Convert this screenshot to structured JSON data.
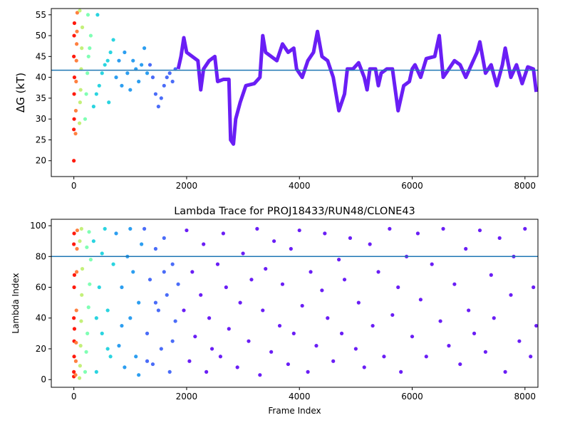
{
  "chart_data": [
    {
      "type": "scatter",
      "ylabel": "ΔG (kT)",
      "xlim": [
        -400,
        8230
      ],
      "ylim": [
        16.2,
        56.5
      ],
      "xticks": [
        0,
        2000,
        4000,
        6000,
        8000
      ],
      "yticks": [
        20,
        25,
        30,
        35,
        40,
        45,
        50,
        55
      ],
      "hline": 41.7,
      "hline_color": "#1f77b4",
      "series": [
        {
          "color": "#ff1a0d",
          "x": [
            0,
            0,
            5,
            5,
            10,
            0,
            5,
            10
          ],
          "values": [
            20,
            27.5,
            30,
            36,
            40,
            45,
            50,
            53
          ]
        },
        {
          "color": "#ff8040",
          "x": [
            30,
            35,
            40,
            45,
            50,
            55,
            60
          ],
          "values": [
            26.5,
            32,
            39,
            44,
            48,
            51,
            55.5
          ]
        },
        {
          "color": "#c4f07a",
          "x": [
            100,
            110,
            120,
            130,
            140,
            150,
            105
          ],
          "values": [
            29,
            34,
            37,
            42,
            47,
            52,
            56
          ]
        },
        {
          "color": "#80ffb4",
          "x": [
            200,
            220,
            240,
            260,
            280,
            300,
            250
          ],
          "values": [
            30,
            36,
            41,
            45,
            47,
            50,
            55
          ]
        },
        {
          "color": "#2ad4e0",
          "x": [
            350,
            400,
            450,
            500,
            550,
            600,
            650,
            700,
            420,
            620
          ],
          "values": [
            33,
            36,
            38,
            41,
            43,
            44,
            46,
            49,
            55,
            34
          ]
        },
        {
          "color": "#2c9ef0",
          "x": [
            750,
            800,
            850,
            900,
            950,
            1000,
            1050,
            1100,
            1150,
            1200,
            1250,
            1300
          ],
          "values": [
            40,
            44,
            38,
            46,
            41,
            37,
            44,
            42,
            39,
            43,
            47,
            41
          ]
        },
        {
          "color": "#4a6cf8",
          "x": [
            1350,
            1400,
            1450,
            1500,
            1550,
            1600,
            1650,
            1700,
            1750,
            1800
          ],
          "values": [
            43,
            40,
            36,
            33,
            35,
            38,
            40,
            41,
            39,
            42
          ]
        },
        {
          "type": "line",
          "color": "#6a1ef5",
          "x": [
            1850,
            1900,
            1950,
            2000,
            2100,
            2200,
            2250,
            2300,
            2400,
            2500,
            2550,
            2650,
            2750,
            2780,
            2830,
            2870,
            2950,
            3050,
            3200,
            3300,
            3350,
            3400,
            3500,
            3600,
            3700,
            3800,
            3900,
            3950,
            4050,
            4150,
            4250,
            4320,
            4400,
            4500,
            4600,
            4700,
            4800,
            4850,
            4950,
            5050,
            5150,
            5200,
            5250,
            5350,
            5400,
            5450,
            5550,
            5650,
            5750,
            5850,
            5950,
            6000,
            6050,
            6150,
            6250,
            6400,
            6480,
            6550,
            6650,
            6750,
            6850,
            6950,
            7050,
            7150,
            7200,
            7300,
            7400,
            7500,
            7600,
            7650,
            7750,
            7850,
            7950,
            8050,
            8150,
            8200
          ],
          "values": [
            42,
            45,
            49.5,
            46,
            45,
            44,
            37,
            42,
            44,
            45,
            39,
            39.5,
            39.5,
            25,
            24,
            30,
            34,
            38,
            38.5,
            40,
            50,
            46,
            45,
            44,
            48,
            46,
            47,
            42,
            40,
            44,
            46,
            51,
            45,
            44,
            40,
            32,
            36,
            42,
            42,
            43.5,
            40,
            37,
            42,
            42,
            38,
            41,
            42,
            42,
            32,
            38,
            39,
            42,
            43,
            40,
            44.5,
            45,
            50,
            40,
            42,
            44,
            43,
            40,
            43,
            46,
            48.5,
            41,
            43,
            38,
            43,
            47,
            40,
            43,
            38.5,
            42.5,
            42,
            36.5
          ]
        }
      ]
    },
    {
      "type": "scatter",
      "title": "Lambda Trace for PROJ18433/RUN48/CLONE43",
      "xlabel": "Frame Index",
      "ylabel": "Lambda Index",
      "xlim": [
        -400,
        8230
      ],
      "ylim": [
        -5,
        104.2
      ],
      "xticks": [
        0,
        2000,
        4000,
        6000,
        8000
      ],
      "yticks": [
        0,
        20,
        40,
        60,
        80,
        100
      ],
      "hline": 80,
      "hline_color": "#1f77b4",
      "series": [
        {
          "color": "#ff1a0d",
          "x": [
            0,
            0,
            5,
            5,
            10,
            0,
            5,
            10,
            0,
            5
          ],
          "values": [
            2,
            5,
            15,
            25,
            33,
            40,
            60,
            68,
            88,
            95
          ]
        },
        {
          "color": "#ff8040",
          "x": [
            30,
            35,
            40,
            45,
            50,
            55,
            60
          ],
          "values": [
            3,
            12,
            24,
            45,
            70,
            85,
            97
          ]
        },
        {
          "color": "#c4f07a",
          "x": [
            100,
            110,
            120,
            130,
            140,
            150,
            105,
            135
          ],
          "values": [
            1,
            9,
            22,
            38,
            55,
            72,
            90,
            98
          ]
        },
        {
          "color": "#80ffb4",
          "x": [
            200,
            220,
            240,
            260,
            280,
            300,
            230,
            270
          ],
          "values": [
            5,
            18,
            30,
            47,
            62,
            78,
            86,
            96
          ]
        },
        {
          "color": "#2ad4e0",
          "x": [
            350,
            400,
            450,
            500,
            550,
            600,
            650,
            700,
            400,
            500,
            600
          ],
          "values": [
            90,
            5,
            60,
            30,
            98,
            45,
            15,
            75,
            40,
            82,
            20
          ]
        },
        {
          "color": "#2c9ef0",
          "x": [
            750,
            800,
            850,
            900,
            950,
            1000,
            1050,
            1100,
            1150,
            1200,
            850,
            1000,
            1150
          ],
          "values": [
            95,
            22,
            60,
            8,
            80,
            40,
            70,
            15,
            50,
            88,
            35,
            98,
            3
          ]
        },
        {
          "color": "#4a6cf8",
          "x": [
            1250,
            1300,
            1350,
            1400,
            1450,
            1500,
            1550,
            1600,
            1650,
            1700,
            1750,
            1800,
            1850,
            1300,
            1450,
            1600,
            1750
          ],
          "values": [
            98,
            30,
            65,
            10,
            85,
            45,
            20,
            92,
            55,
            5,
            75,
            38,
            62,
            12,
            50,
            70,
            25
          ]
        },
        {
          "color": "#6a1ef5",
          "x": [
            1950,
            2000,
            2050,
            2100,
            2150,
            2250,
            2300,
            2350,
            2400,
            2450,
            2550,
            2600,
            2650,
            2700,
            2750,
            2900,
            2950,
            3000,
            3100,
            3150,
            3250,
            3300,
            3350,
            3400,
            3500,
            3550,
            3650,
            3700,
            3800,
            3850,
            3900,
            4000,
            4050,
            4150,
            4200,
            4300,
            4400,
            4450,
            4500,
            4600,
            4700,
            4750,
            4800,
            4900,
            5000,
            5050,
            5150,
            5250,
            5300,
            5400,
            5500,
            5600,
            5650,
            5750,
            5800,
            5900,
            6000,
            6100,
            6150,
            6250,
            6350,
            6500,
            6550,
            6650,
            6750,
            6850,
            6950,
            7000,
            7100,
            7200,
            7300,
            7400,
            7450,
            7550,
            7650,
            7750,
            7800,
            7900,
            8000,
            8100,
            8150,
            8200
          ],
          "values": [
            45,
            97,
            12,
            70,
            28,
            55,
            88,
            5,
            40,
            20,
            75,
            15,
            95,
            60,
            33,
            8,
            50,
            82,
            25,
            65,
            98,
            3,
            45,
            72,
            18,
            90,
            35,
            62,
            10,
            85,
            30,
            97,
            48,
            5,
            70,
            22,
            58,
            95,
            40,
            12,
            78,
            30,
            65,
            92,
            20,
            50,
            8,
            88,
            35,
            70,
            15,
            98,
            42,
            60,
            5,
            80,
            28,
            95,
            52,
            15,
            75,
            38,
            98,
            22,
            62,
            10,
            85,
            45,
            30,
            97,
            18,
            68,
            40,
            92,
            5,
            55,
            80,
            25,
            98,
            15,
            60,
            35
          ]
        }
      ]
    }
  ]
}
